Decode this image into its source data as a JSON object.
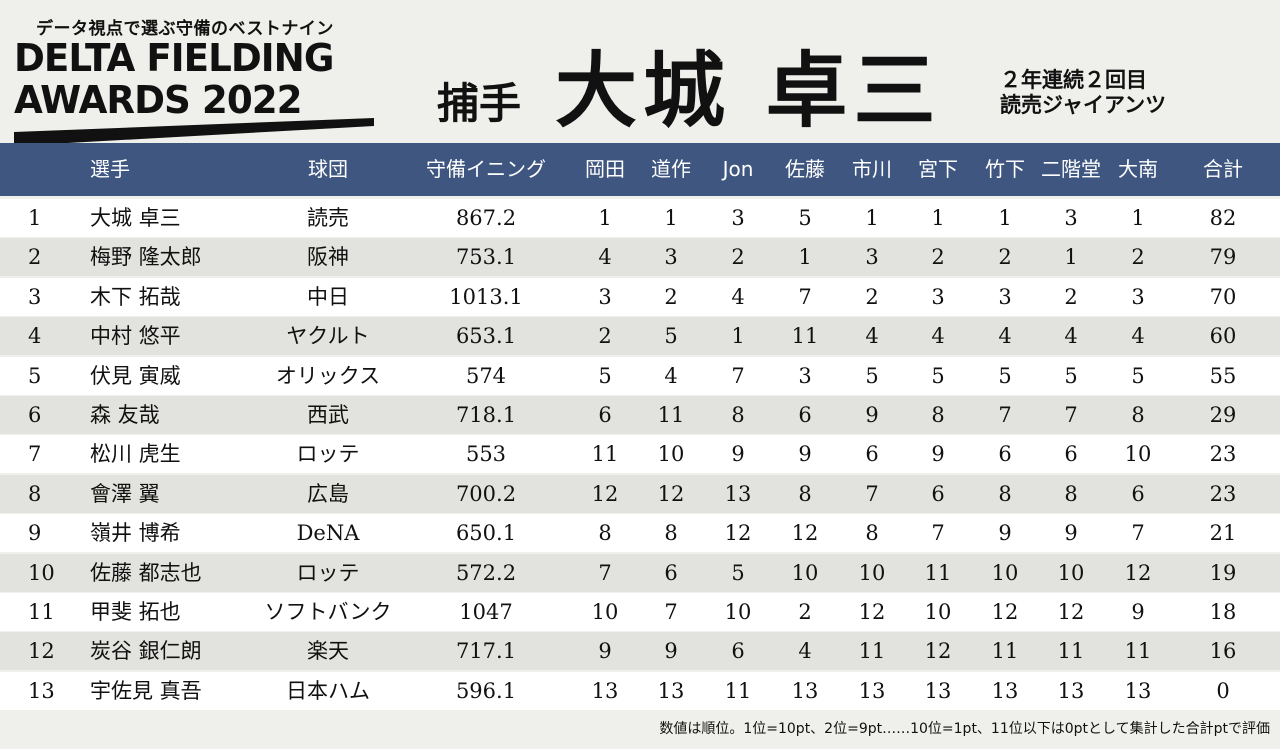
{
  "header": {
    "kicker": "データ視点で選ぶ守備のベストナイン",
    "logo_line1": "DELTA FIELDING",
    "logo_line2": "AWARDS 2022",
    "position": "捕手",
    "player": "大城 卓三",
    "badge_line1": "２年連続２回目",
    "badge_line2": "読売ジャイアンツ"
  },
  "chart_data": {
    "type": "table",
    "columns": [
      "",
      "選手",
      "球団",
      "守備イニング",
      "岡田",
      "道作",
      "Jon",
      "佐藤",
      "市川",
      "宮下",
      "竹下",
      "二階堂",
      "大南",
      "合計"
    ],
    "rows": [
      [
        "1",
        "大城 卓三",
        "読売",
        "867.2",
        "1",
        "1",
        "3",
        "5",
        "1",
        "1",
        "1",
        "3",
        "1",
        "82"
      ],
      [
        "2",
        "梅野 隆太郎",
        "阪神",
        "753.1",
        "4",
        "3",
        "2",
        "1",
        "3",
        "2",
        "2",
        "1",
        "2",
        "79"
      ],
      [
        "3",
        "木下 拓哉",
        "中日",
        "1013.1",
        "3",
        "2",
        "4",
        "7",
        "2",
        "3",
        "3",
        "2",
        "3",
        "70"
      ],
      [
        "4",
        "中村 悠平",
        "ヤクルト",
        "653.1",
        "2",
        "5",
        "1",
        "11",
        "4",
        "4",
        "4",
        "4",
        "4",
        "60"
      ],
      [
        "5",
        "伏見 寅威",
        "オリックス",
        "574",
        "5",
        "4",
        "7",
        "3",
        "5",
        "5",
        "5",
        "5",
        "5",
        "55"
      ],
      [
        "6",
        "森 友哉",
        "西武",
        "718.1",
        "6",
        "11",
        "8",
        "6",
        "9",
        "8",
        "7",
        "7",
        "8",
        "29"
      ],
      [
        "7",
        "松川 虎生",
        "ロッテ",
        "553",
        "11",
        "10",
        "9",
        "9",
        "6",
        "9",
        "6",
        "6",
        "10",
        "23"
      ],
      [
        "8",
        "會澤 翼",
        "広島",
        "700.2",
        "12",
        "12",
        "13",
        "8",
        "7",
        "6",
        "8",
        "8",
        "6",
        "23"
      ],
      [
        "9",
        "嶺井 博希",
        "DeNA",
        "650.1",
        "8",
        "8",
        "12",
        "12",
        "8",
        "7",
        "9",
        "9",
        "7",
        "21"
      ],
      [
        "10",
        "佐藤 都志也",
        "ロッテ",
        "572.2",
        "7",
        "6",
        "5",
        "10",
        "10",
        "11",
        "10",
        "10",
        "12",
        "19"
      ],
      [
        "11",
        "甲斐 拓也",
        "ソフトバンク",
        "1047",
        "10",
        "7",
        "10",
        "2",
        "12",
        "10",
        "12",
        "12",
        "9",
        "18"
      ],
      [
        "12",
        "炭谷 銀仁朗",
        "楽天",
        "717.1",
        "9",
        "9",
        "6",
        "4",
        "11",
        "12",
        "11",
        "11",
        "11",
        "16"
      ],
      [
        "13",
        "宇佐見 真吾",
        "日本ハム",
        "596.1",
        "13",
        "13",
        "11",
        "13",
        "13",
        "13",
        "13",
        "13",
        "13",
        "0"
      ]
    ],
    "header_color": "#3f5780",
    "row_colors": [
      "#ffffff",
      "#e2e2de"
    ]
  },
  "footnote": "数値は順位。1位=10pt、2位=9pt……10位=1pt、11位以下は0ptとして集計した合計ptで評価"
}
